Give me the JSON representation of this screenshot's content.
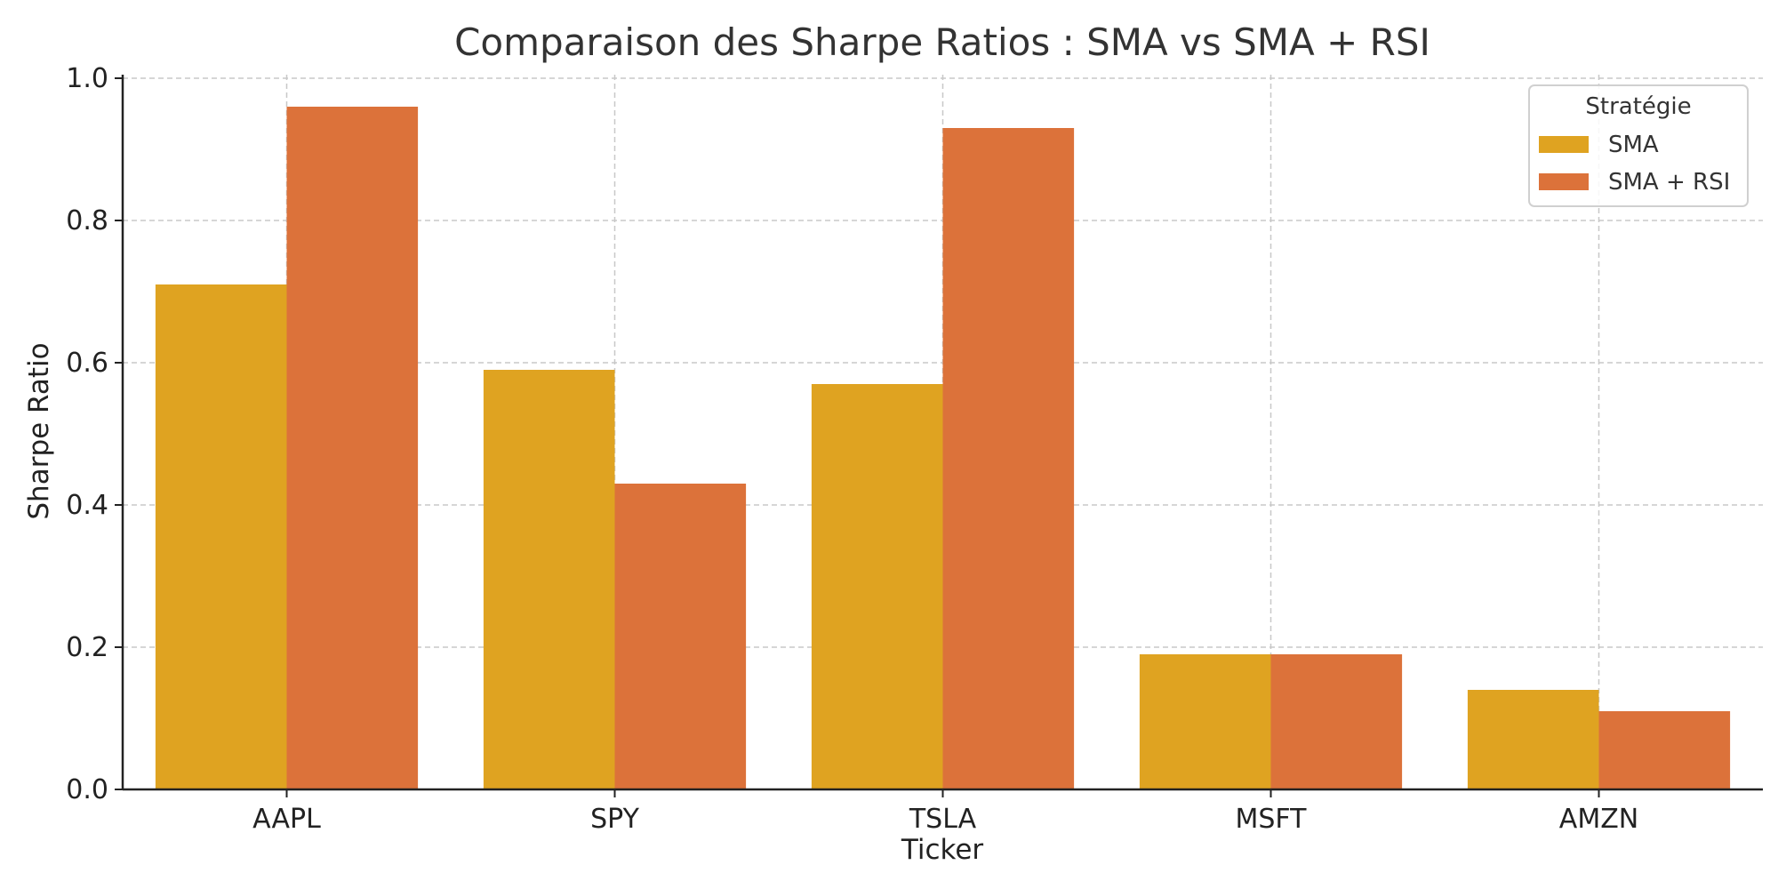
{
  "chart_data": {
    "type": "bar",
    "title": "Comparaison des Sharpe Ratios : SMA vs SMA + RSI",
    "xlabel": "Ticker",
    "ylabel": "Sharpe Ratio",
    "categories": [
      "AAPL",
      "SPY",
      "TSLA",
      "MSFT",
      "AMZN"
    ],
    "series": [
      {
        "name": "SMA",
        "color": "#dfa321",
        "values": [
          0.71,
          0.59,
          0.57,
          0.19,
          0.14
        ]
      },
      {
        "name": "SMA + RSI",
        "color": "#dc723a",
        "values": [
          0.96,
          0.43,
          0.93,
          0.19,
          0.11
        ]
      }
    ],
    "ylim": [
      0,
      1.0
    ],
    "yticks": [
      "0.0",
      "0.2",
      "0.4",
      "0.6",
      "0.8",
      "1.0"
    ],
    "ytick_values": [
      0,
      0.2,
      0.4,
      0.6,
      0.8,
      1.0
    ],
    "grid": true,
    "legend": {
      "title": "Stratégie",
      "placement": "top-right"
    }
  }
}
